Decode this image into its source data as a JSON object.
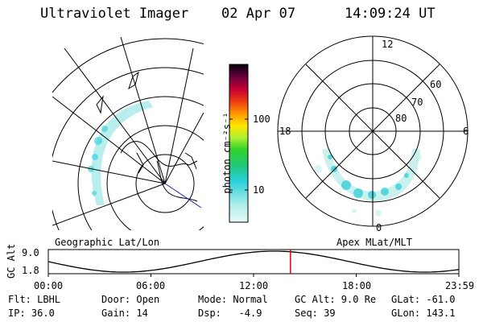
{
  "header": {
    "title": "Ultraviolet Imager",
    "date": "02 Apr 07",
    "time": "14:09:24 UT"
  },
  "left_panel": {
    "label": "Geographic Lat/Lon"
  },
  "right_panel": {
    "label": "Apex MLat/MLT",
    "mlt_labels": {
      "top": "12",
      "left": "18",
      "right": "6",
      "bottom": "0"
    },
    "lat_labels": [
      "60",
      "70",
      "80"
    ]
  },
  "colorbar": {
    "units": "photon cm⁻²s⁻¹",
    "ticks": [
      "100",
      "10"
    ],
    "colors": [
      "#000000",
      "#4b0033",
      "#b00040",
      "#e8002a",
      "#ff8a00",
      "#ffd200",
      "#c8ff32",
      "#32dc2a",
      "#20c8e0",
      "#d0f4f0"
    ]
  },
  "altitude_plot": {
    "ylabel": "GC Alt",
    "y_ticks": [
      "9.0",
      "1.8"
    ],
    "x_ticks": [
      "00:00",
      "06:00",
      "12:00",
      "18:00",
      "23:59"
    ],
    "current_time_marker_hours": 14.157,
    "marker_color": "#e00000"
  },
  "footer": {
    "row1": {
      "filter": "Flt: LBHL",
      "door": "Door: Open",
      "mode": "Mode: Normal",
      "gc_alt": "GC Alt: 9.0 Re",
      "glat": "GLat: -61.0"
    },
    "row2": {
      "ip": "IP: 36.0",
      "gain": "Gain: 14",
      "dsp": "Dsp:   -4.9",
      "seq": "Seq: 39",
      "glon": "GLon: 143.1"
    }
  }
}
